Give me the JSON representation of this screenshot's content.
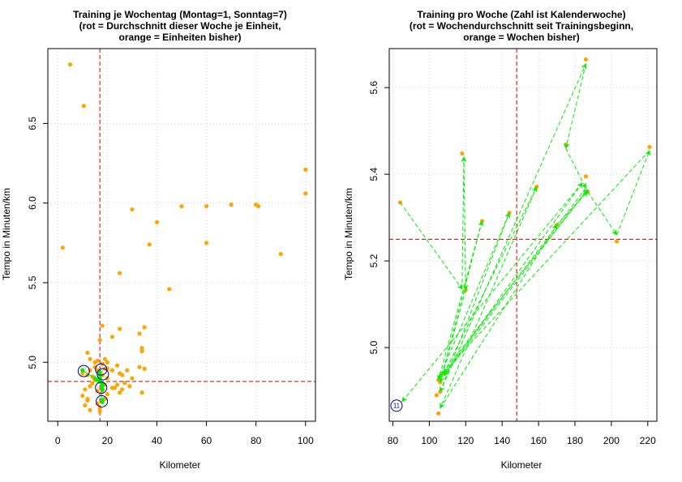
{
  "chart_data": [
    {
      "type": "scatter",
      "title": [
        "Training je Wochentag (Montag=1, Sonntag=7)",
        "(rot = Durchschnitt dieser Woche je Einheit,",
        "orange = Einheiten bisher)"
      ],
      "xlabel": "Kilometer",
      "ylabel": "Tempo in Minuten/km",
      "xlim": [
        -4,
        104
      ],
      "ylim": [
        4.63,
        6.97
      ],
      "xticks": [
        0,
        20,
        40,
        60,
        80,
        100
      ],
      "yticks": [
        5.0,
        5.5,
        6.0,
        6.5
      ],
      "ytick_labels": [
        "5.0",
        "5.5",
        "6.0",
        "6.5"
      ],
      "grid": true,
      "reference_lines": {
        "x": 17,
        "y": 4.88,
        "color": "#cc0000"
      },
      "colors": {
        "points": "#ffa500",
        "arrows": "#00ee00",
        "circles": "#00008b",
        "ref": "#cc0000"
      },
      "series": [
        {
          "name": "Einheiten bisher",
          "color": "#ffa500",
          "x": [
            5,
            10.5,
            2,
            100,
            100,
            30,
            50,
            60,
            70,
            80,
            81,
            40,
            37,
            60,
            90,
            45,
            25,
            18,
            35,
            33,
            25,
            17,
            34,
            34,
            22,
            19,
            15,
            16,
            12,
            20,
            13,
            18,
            15,
            16,
            17,
            18,
            19,
            14,
            20,
            22,
            25,
            26,
            28,
            30,
            35,
            33,
            27,
            24,
            23,
            10,
            12,
            13,
            11,
            14,
            15,
            16,
            18,
            19,
            20,
            10,
            12,
            11,
            13,
            16,
            17,
            19,
            22,
            25,
            24,
            13,
            12,
            17,
            20,
            26,
            29,
            34
          ],
          "y": [
            6.87,
            6.61,
            5.72,
            6.21,
            6.06,
            5.96,
            5.98,
            5.98,
            5.99,
            5.99,
            5.98,
            5.88,
            5.74,
            5.75,
            5.68,
            5.46,
            5.56,
            5.23,
            5.22,
            5.18,
            5.21,
            5.14,
            5.09,
            5.07,
            5.16,
            5.02,
            5.0,
            5.01,
            5.06,
            5.0,
            5.02,
            4.99,
            4.97,
            4.95,
            4.94,
            4.92,
            4.96,
            4.91,
            4.96,
            4.95,
            4.93,
            4.92,
            4.95,
            4.9,
            4.96,
            4.97,
            4.87,
            4.86,
            4.84,
            4.93,
            4.92,
            4.85,
            4.83,
            4.87,
            4.89,
            4.82,
            4.82,
            4.86,
            4.9,
            4.79,
            4.77,
            4.73,
            4.7,
            4.74,
            4.71,
            4.77,
            4.84,
            4.81,
            4.98,
            4.95,
            4.76,
            4.69,
            4.8,
            4.83,
            4.85,
            4.81
          ]
        },
        {
          "name": "Woche je Einheit",
          "color": "#00ee00",
          "x": [
            10,
            16,
            17,
            18,
            18,
            17,
            17,
            18
          ],
          "y": [
            4.95,
            4.89,
            4.88,
            4.86,
            4.83,
            4.9,
            4.94,
            4.75
          ]
        }
      ],
      "markers": [
        {
          "x": 10.5,
          "y": 4.945,
          "label": ""
        },
        {
          "x": 17.5,
          "y": 4.955,
          "label": ""
        },
        {
          "x": 18.2,
          "y": 4.925,
          "label": ""
        },
        {
          "x": 17.5,
          "y": 4.84,
          "label": ""
        },
        {
          "x": 17.8,
          "y": 4.755,
          "label": ""
        }
      ]
    },
    {
      "type": "scatter",
      "title": [
        "Training pro Woche (Zahl ist Kalenderwoche)",
        "(rot = Wochendurchschnitt seit Trainingsbeginn,",
        "orange = Wochen bisher)"
      ],
      "xlabel": "Kilometer",
      "ylabel": "Tempo in Minuten/km",
      "xlim": [
        78,
        225
      ],
      "ylim": [
        4.83,
        5.69
      ],
      "xticks": [
        80,
        100,
        120,
        140,
        160,
        180,
        200,
        220
      ],
      "yticks": [
        5.0,
        5.2,
        5.4,
        5.6
      ],
      "ytick_labels": [
        "5.0",
        "5.2",
        "5.4",
        "5.6"
      ],
      "grid": true,
      "reference_lines": {
        "x": 148,
        "y": 5.25,
        "color": "#cc0000"
      },
      "colors": {
        "points": "#ffa500",
        "arrows": "#00ee00",
        "circles": "#00008b",
        "ref": "#cc0000"
      },
      "series": [
        {
          "name": "Wochen bisher",
          "color": "#ffa500",
          "x": [
            84,
            118,
            120,
            106,
            129,
            105,
            144,
            106,
            186,
            175,
            186,
            159,
            170,
            187,
            203,
            221,
            105,
            108,
            104
          ],
          "y": [
            5.335,
            5.448,
            5.133,
            4.92,
            5.292,
            4.925,
            5.311,
            4.898,
            5.665,
            5.468,
            5.395,
            5.371,
            5.283,
            5.36,
            5.245,
            5.463,
            4.848,
            4.94,
            4.89
          ]
        }
      ],
      "arrows": {
        "color": "#00ee00",
        "path_x": [
          84,
          118,
          119,
          120,
          106,
          129,
          105,
          144,
          106,
          186,
          175,
          186,
          108,
          159,
          106,
          170,
          187,
          203,
          221,
          105,
          187,
          108,
          184,
          85
        ],
        "path_y": [
          5.335,
          5.135,
          5.44,
          5.133,
          4.92,
          5.292,
          4.925,
          5.311,
          4.898,
          5.655,
          5.46,
          5.368,
          4.94,
          5.371,
          4.86,
          5.283,
          5.36,
          5.26,
          5.455,
          4.93,
          5.365,
          4.935,
          5.38,
          4.875
        ]
      },
      "markers": [
        {
          "x": 82,
          "y": 4.866,
          "label": "11"
        }
      ]
    }
  ]
}
